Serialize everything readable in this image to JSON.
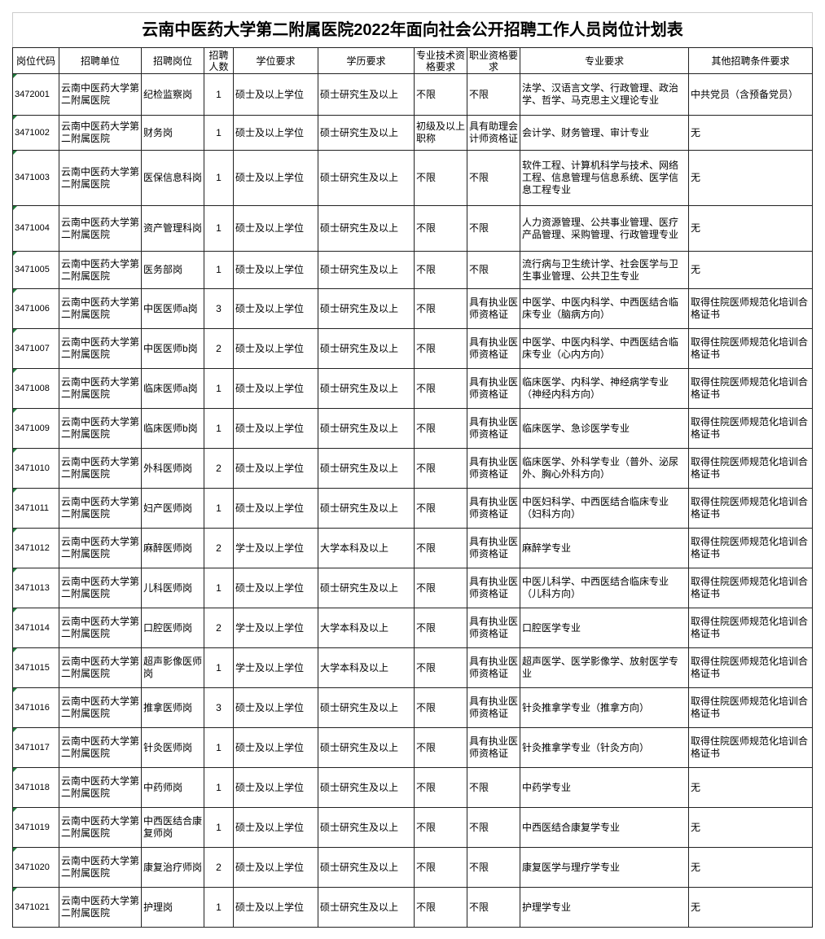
{
  "title": "云南中医药大学第二附属医院2022年面向社会公开招聘工作人员岗位计划表",
  "headers": [
    "岗位代码",
    "招聘单位",
    "招聘岗位",
    "招聘人数",
    "学位要求",
    "学历要求",
    "专业技术资格要求",
    "职业资格要求",
    "专业要求",
    "其他招聘条件要求"
  ],
  "rows": [
    [
      "3472001",
      "云南中医药大学第二附属医院",
      "纪检监察岗",
      "1",
      "硕士及以上学位",
      "硕士研究生及以上",
      "不限",
      "不限",
      "法学、汉语言文学、行政管理、政治学、哲学、马克思主义理论专业",
      "中共党员（含预备党员）"
    ],
    [
      "3471002",
      "云南中医药大学第二附属医院",
      "财务岗",
      "1",
      "硕士及以上学位",
      "硕士研究生及以上",
      "初级及以上职称",
      "具有助理会计师资格证",
      "会计学、财务管理、审计专业",
      "无"
    ],
    [
      "3471003",
      "云南中医药大学第二附属医院",
      "医保信息科岗",
      "1",
      "硕士及以上学位",
      "硕士研究生及以上",
      "不限",
      "不限",
      "软件工程、计算机科学与技术、网络工程、信息管理与信息系统、医学信息工程专业",
      "无"
    ],
    [
      "3471004",
      "云南中医药大学第二附属医院",
      "资产管理科岗",
      "1",
      "硕士及以上学位",
      "硕士研究生及以上",
      "不限",
      "不限",
      "人力资源管理、公共事业管理、医疗产品管理、采购管理、行政管理专业",
      "无"
    ],
    [
      "3471005",
      "云南中医药大学第二附属医院",
      "医务部岗",
      "1",
      "硕士及以上学位",
      "硕士研究生及以上",
      "不限",
      "不限",
      "流行病与卫生统计学、社会医学与卫生事业管理、公共卫生专业",
      "无"
    ],
    [
      "3471006",
      "云南中医药大学第二附属医院",
      "中医医师a岗",
      "3",
      "硕士及以上学位",
      "硕士研究生及以上",
      "不限",
      "具有执业医师资格证",
      "中医学、中医内科学、中西医结合临床专业（脑病方向）",
      "取得住院医师规范化培训合格证书"
    ],
    [
      "3471007",
      "云南中医药大学第二附属医院",
      "中医医师b岗",
      "2",
      "硕士及以上学位",
      "硕士研究生及以上",
      "不限",
      "具有执业医师资格证",
      "中医学、中医内科学、中西医结合临床专业（心内方向）",
      "取得住院医师规范化培训合格证书"
    ],
    [
      "3471008",
      "云南中医药大学第二附属医院",
      "临床医师a岗",
      "1",
      "硕士及以上学位",
      "硕士研究生及以上",
      "不限",
      "具有执业医师资格证",
      "临床医学、内科学、神经病学专业（神经内科方向）",
      "取得住院医师规范化培训合格证书"
    ],
    [
      "3471009",
      "云南中医药大学第二附属医院",
      "临床医师b岗",
      "1",
      "硕士及以上学位",
      "硕士研究生及以上",
      "不限",
      "具有执业医师资格证",
      "临床医学、急诊医学专业",
      "取得住院医师规范化培训合格证书"
    ],
    [
      "3471010",
      "云南中医药大学第二附属医院",
      "外科医师岗",
      "2",
      "硕士及以上学位",
      "硕士研究生及以上",
      "不限",
      "具有执业医师资格证",
      "临床医学、外科学专业（普外、泌尿外、胸心外科方向）",
      "取得住院医师规范化培训合格证书"
    ],
    [
      "3471011",
      "云南中医药大学第二附属医院",
      "妇产医师岗",
      "1",
      "硕士及以上学位",
      "硕士研究生及以上",
      "不限",
      "具有执业医师资格证",
      "中医妇科学、中西医结合临床专业（妇科方向）",
      "取得住院医师规范化培训合格证书"
    ],
    [
      "3471012",
      "云南中医药大学第二附属医院",
      "麻醉医师岗",
      "2",
      "学士及以上学位",
      "大学本科及以上",
      "不限",
      "具有执业医师资格证",
      "麻醉学专业",
      "取得住院医师规范化培训合格证书"
    ],
    [
      "3471013",
      "云南中医药大学第二附属医院",
      "儿科医师岗",
      "1",
      "硕士及以上学位",
      "硕士研究生及以上",
      "不限",
      "具有执业医师资格证",
      "中医儿科学、中西医结合临床专业（儿科方向）",
      "取得住院医师规范化培训合格证书"
    ],
    [
      "3471014",
      "云南中医药大学第二附属医院",
      "口腔医师岗",
      "2",
      "学士及以上学位",
      "大学本科及以上",
      "不限",
      "具有执业医师资格证",
      "口腔医学专业",
      "取得住院医师规范化培训合格证书"
    ],
    [
      "3471015",
      "云南中医药大学第二附属医院",
      "超声影像医师岗",
      "1",
      "学士及以上学位",
      "大学本科及以上",
      "不限",
      "具有执业医师资格证",
      "超声医学、医学影像学、放射医学专业",
      "取得住院医师规范化培训合格证书"
    ],
    [
      "3471016",
      "云南中医药大学第二附属医院",
      "推拿医师岗",
      "3",
      "硕士及以上学位",
      "硕士研究生及以上",
      "不限",
      "具有执业医师资格证",
      "针灸推拿学专业（推拿方向）",
      "取得住院医师规范化培训合格证书"
    ],
    [
      "3471017",
      "云南中医药大学第二附属医院",
      "针灸医师岗",
      "1",
      "硕士及以上学位",
      "硕士研究生及以上",
      "不限",
      "具有执业医师资格证",
      "针灸推拿学专业（针灸方向）",
      "取得住院医师规范化培训合格证书"
    ],
    [
      "3471018",
      "云南中医药大学第二附属医院",
      "中药师岗",
      "1",
      "硕士及以上学位",
      "硕士研究生及以上",
      "不限",
      "不限",
      "中药学专业",
      "无"
    ],
    [
      "3471019",
      "云南中医药大学第二附属医院",
      "中西医结合康复师岗",
      "1",
      "硕士及以上学位",
      "硕士研究生及以上",
      "不限",
      "不限",
      "中西医结合康复学专业",
      "无"
    ],
    [
      "3471020",
      "云南中医药大学第二附属医院",
      "康复治疗师岗",
      "2",
      "硕士及以上学位",
      "硕士研究生及以上",
      "不限",
      "不限",
      "康复医学与理疗学专业",
      "无"
    ],
    [
      "3471021",
      "云南中医药大学第二附属医院",
      "护理岗",
      "1",
      "硕士及以上学位",
      "硕士研究生及以上",
      "不限",
      "不限",
      "护理学专业",
      "无"
    ]
  ],
  "colors": {
    "grid": "#222222",
    "marker": "#1f7a3a"
  }
}
